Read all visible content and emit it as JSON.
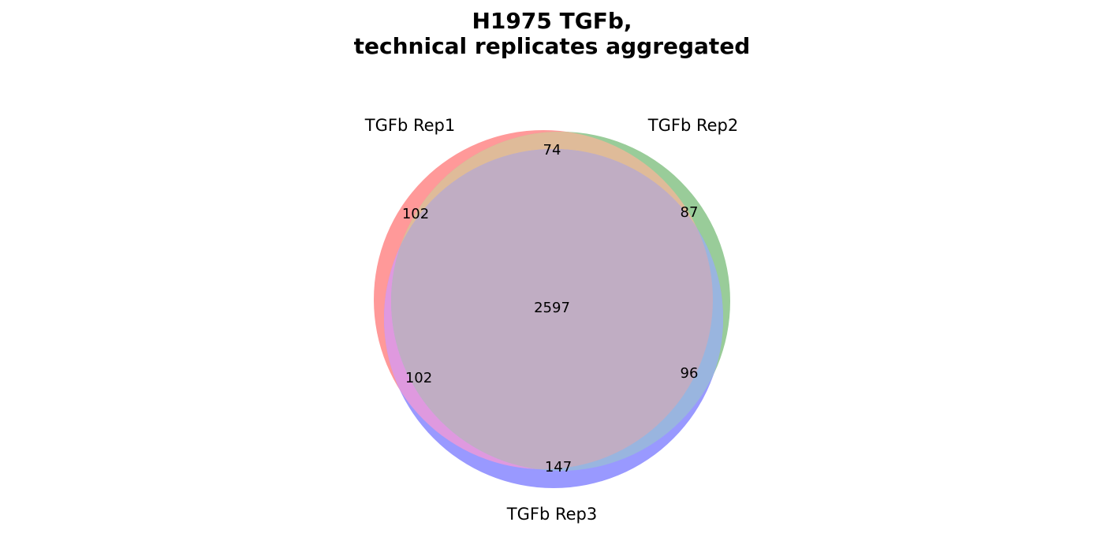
{
  "chart_data": {
    "type": "venn",
    "title": [
      "H1975 TGFb,",
      "technical replicates aggregated"
    ],
    "sets": [
      {
        "name": "TGFb Rep1",
        "color": "#ff9999"
      },
      {
        "name": "TGFb Rep2",
        "color": "#99cc99"
      },
      {
        "name": "TGFb Rep3",
        "color": "#9999ff"
      }
    ],
    "overlap_colors": {
      "Rep1&Rep2": "#dfbb99",
      "Rep1&Rep3": "#df99df",
      "Rep2&Rep3": "#99b5df",
      "Rep1&Rep2&Rep3": "#c0adc3"
    },
    "regions": [
      {
        "sets": [
          "TGFb Rep1"
        ],
        "value": 102
      },
      {
        "sets": [
          "TGFb Rep2"
        ],
        "value": 87
      },
      {
        "sets": [
          "TGFb Rep3"
        ],
        "value": 147
      },
      {
        "sets": [
          "TGFb Rep1",
          "TGFb Rep2"
        ],
        "value": 74
      },
      {
        "sets": [
          "TGFb Rep1",
          "TGFb Rep3"
        ],
        "value": 102
      },
      {
        "sets": [
          "TGFb Rep2",
          "TGFb Rep3"
        ],
        "value": 96
      },
      {
        "sets": [
          "TGFb Rep1",
          "TGFb Rep2",
          "TGFb Rep3"
        ],
        "value": 2597
      }
    ]
  }
}
